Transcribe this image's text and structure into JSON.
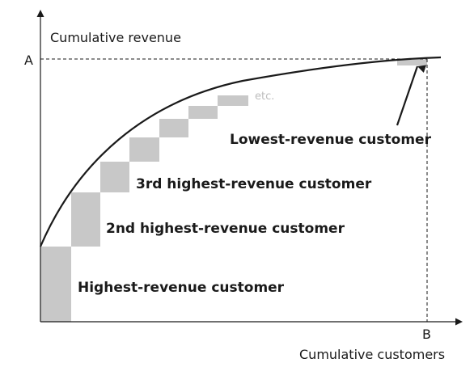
{
  "y_axis_title": "Cumulative revenue",
  "x_axis_title": "Cumulative customers",
  "y_marker_label": "A",
  "x_marker_label": "B",
  "annotations": {
    "highest": "Highest-revenue customer",
    "second": "2nd highest-revenue customer",
    "third": "3rd highest-revenue customer",
    "etc": "etc.",
    "lowest": "Lowest-revenue customer"
  },
  "colors": {
    "bars": "#c8c8c8",
    "curve": "#1a1a1a",
    "etc_text": "#bdbdbd"
  }
}
